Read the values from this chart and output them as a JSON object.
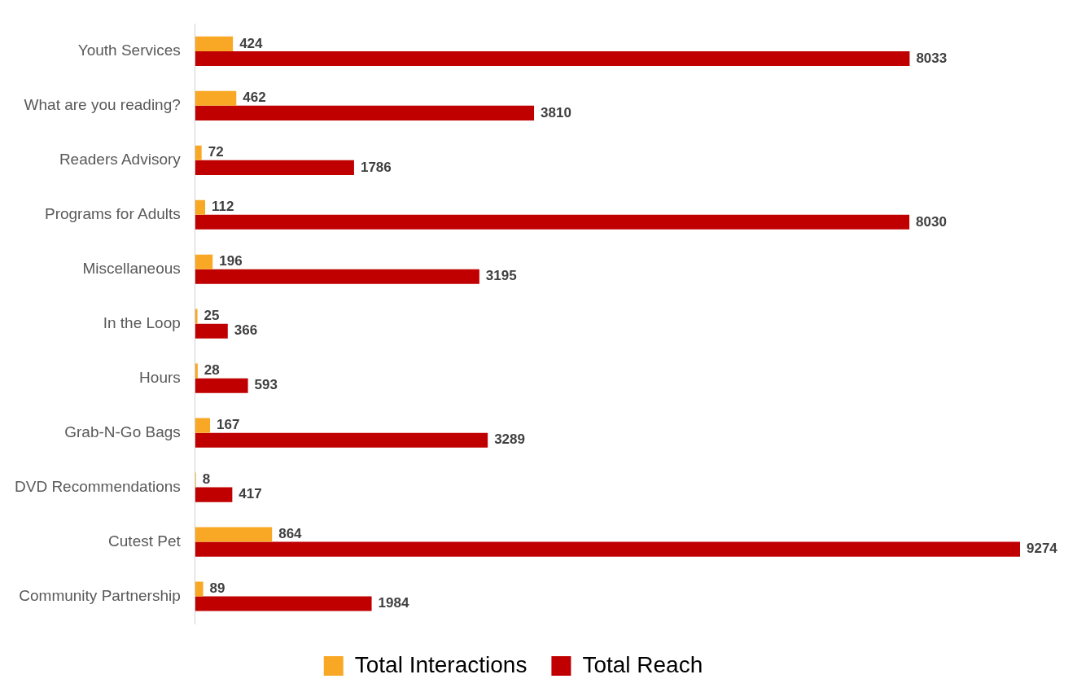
{
  "chart_data": {
    "type": "bar",
    "orientation": "horizontal",
    "categories": [
      "Youth Services",
      "What are you reading?",
      "Readers Advisory",
      "Programs for Adults",
      "Miscellaneous",
      "In the Loop",
      "Hours",
      "Grab-N-Go Bags",
      "DVD Recommendations",
      "Cutest Pet",
      "Community Partnership"
    ],
    "series": [
      {
        "name": "Total Interactions",
        "color": "#f9a825",
        "values": [
          424,
          462,
          72,
          112,
          196,
          25,
          28,
          167,
          8,
          864,
          89
        ]
      },
      {
        "name": "Total Reach",
        "color": "#c00000",
        "values": [
          8033,
          3810,
          1786,
          8030,
          3195,
          366,
          593,
          3289,
          417,
          9274,
          1984
        ]
      }
    ],
    "data_labels": true,
    "grid": false,
    "legend": "bottom"
  }
}
